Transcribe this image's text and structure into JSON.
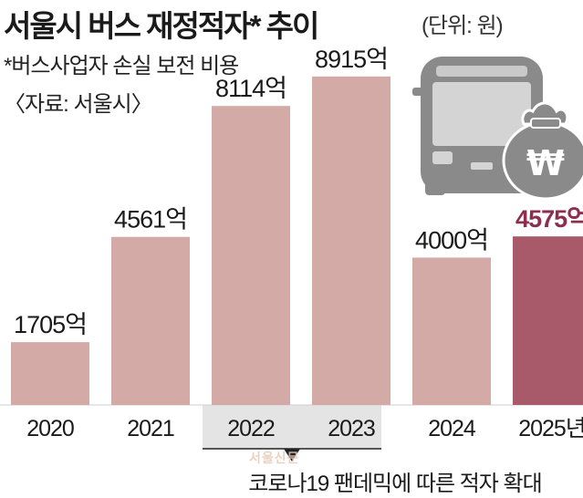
{
  "header": {
    "title": "서울시 버스 재정적자* 추이",
    "unit": "(단위: 원)",
    "footnote": "*버스사업자 손실 보전 비용",
    "source": "〈자료: 서울시〉"
  },
  "annotation": {
    "pandemic_caption": "코로나19 팬데믹에 따른 적자 확대",
    "range": [
      "2022",
      "2023"
    ]
  },
  "watermark": "서울신문",
  "colors": {
    "bar": "#d4aaa6",
    "bar_highlight": "#a85a6b",
    "highlight_label": "#8c2f4f",
    "axis_label_bg": "#e4e4e4",
    "icon_gray": "#8a8a8a"
  },
  "icons": [
    "bus-icon",
    "money-bag-icon"
  ],
  "chart_data": {
    "type": "bar",
    "categories": [
      "2020",
      "2021",
      "2022",
      "2023",
      "2024",
      "2025년"
    ],
    "values": [
      1705,
      4561,
      8114,
      8915,
      4000,
      4575
    ],
    "value_labels": [
      "1705억",
      "4561억",
      "8114억",
      "8915억",
      "4000억",
      "4575억"
    ],
    "highlight_index": 5,
    "shaded_categories": [
      2,
      3
    ],
    "ylim": [
      0,
      10000
    ],
    "grid": false,
    "legend": "none",
    "title": "서울시 버스 재정적자* 추이",
    "xlabel": "",
    "ylabel": ""
  }
}
